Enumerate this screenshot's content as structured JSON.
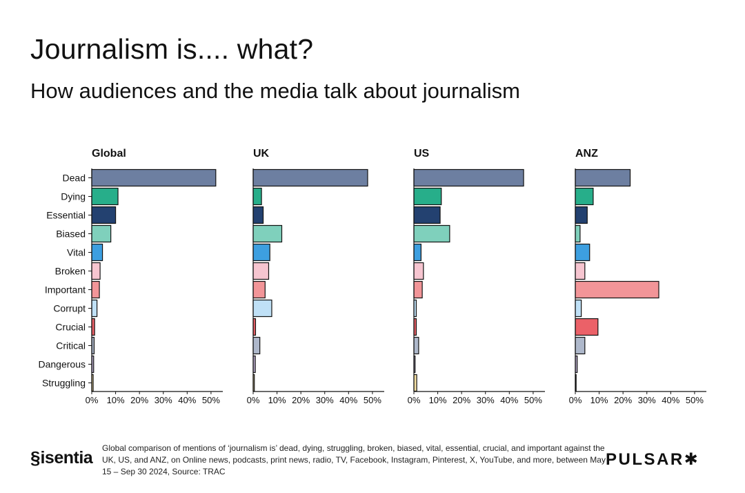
{
  "header": {
    "title": "Journalism is.... what?",
    "subtitle": "How audiences and the media talk about journalism"
  },
  "footer": {
    "note": "Global comparison of mentions of ‘journalism is’ dead, dying, struggling, broken, biased, vital, essential, crucial, and important against the UK, US, and ANZ, on Online news, podcasts, print news, radio, TV, Facebook, Instagram, Pinterest, X, YouTube, and more, between May 15 – Sep 30 2024, Source: TRAC",
    "brand_left": "isentia",
    "brand_right": "PULSAR",
    "brand_right_icon": "asterisk-icon"
  },
  "chart_data": {
    "type": "bar",
    "orientation": "horizontal",
    "categories": [
      "Dead",
      "Dying",
      "Essential",
      "Biased",
      "Vital",
      "Broken",
      "Important",
      "Corrupt",
      "Crucial",
      "Critical",
      "Dangerous",
      "Struggling"
    ],
    "colors": [
      "#6d7fa1",
      "#27ae8a",
      "#234170",
      "#7fd0bc",
      "#3d9fe0",
      "#f6c5d0",
      "#f29598",
      "#bfe0f6",
      "#eb6168",
      "#aeb8cb",
      "#b8aacb",
      "#f4e0a4"
    ],
    "xticks": [
      "0%",
      "10%",
      "20%",
      "30%",
      "40%",
      "50%"
    ],
    "xlim": [
      0,
      55
    ],
    "series": [
      {
        "name": "Global",
        "values": [
          52,
          11,
          10,
          8,
          4.5,
          3.5,
          3.2,
          2.2,
          1.2,
          1.0,
          0.8,
          0.6
        ]
      },
      {
        "name": "UK",
        "values": [
          48,
          3.5,
          4.2,
          12,
          7,
          6.5,
          5,
          7.8,
          1.0,
          2.8,
          0.9,
          0.5
        ]
      },
      {
        "name": "US",
        "values": [
          46,
          11.5,
          11,
          15,
          3,
          4,
          3.5,
          1.0,
          1.0,
          2,
          0.5,
          1.2
        ]
      },
      {
        "name": "ANZ",
        "values": [
          23,
          7.5,
          5,
          2,
          6,
          4,
          35,
          2.5,
          9.5,
          4,
          0.8,
          0.3
        ]
      }
    ]
  }
}
